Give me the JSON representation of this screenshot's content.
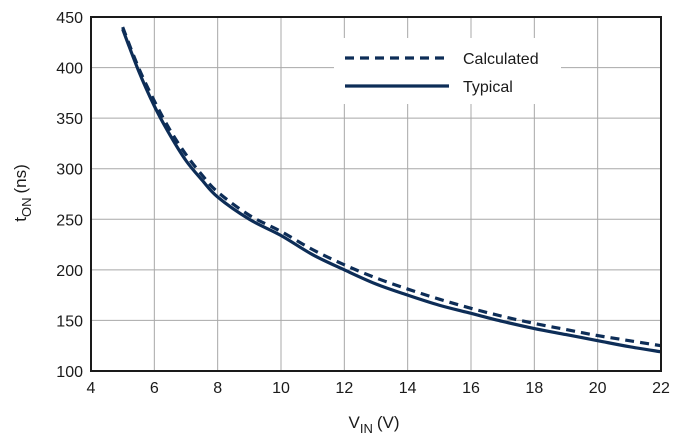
{
  "chart_data": {
    "type": "line",
    "x_axis": {
      "label_main": "V",
      "label_sub": "IN",
      "label_unit": "(V)",
      "range": [
        4,
        22
      ],
      "ticks": [
        4,
        6,
        8,
        10,
        12,
        14,
        16,
        18,
        20,
        22
      ],
      "tick_labels": [
        "4",
        "6",
        "8",
        "10",
        "12",
        "14",
        "16",
        "18",
        "20",
        "22"
      ],
      "grid": true
    },
    "y_axis": {
      "label_main": "t",
      "label_sub": "ON",
      "label_unit": "(ns)",
      "range": [
        100,
        450
      ],
      "ticks": [
        100,
        150,
        200,
        250,
        300,
        350,
        400,
        450
      ],
      "tick_labels": [
        "100",
        "150",
        "200",
        "250",
        "300",
        "350",
        "400",
        "450"
      ],
      "grid": true
    },
    "legend": {
      "position": "top-right"
    },
    "series": [
      {
        "name": "Calculated",
        "style": "dashed",
        "color": "#0d2d57",
        "x": [
          5,
          5.5,
          6,
          6.5,
          7,
          7.5,
          8,
          9,
          10,
          11,
          12,
          13,
          14,
          15,
          16,
          17,
          18,
          19,
          20,
          21,
          22
        ],
        "y": [
          440,
          400,
          367,
          338,
          314,
          294,
          277,
          254,
          238,
          220,
          205,
          192,
          181,
          171,
          162,
          154,
          147,
          141,
          135,
          130,
          125
        ]
      },
      {
        "name": "Typical",
        "style": "solid",
        "color": "#0d2d57",
        "x": [
          5,
          5.5,
          6,
          6.5,
          7,
          7.5,
          8,
          9,
          10,
          11,
          12,
          13,
          14,
          15,
          16,
          17,
          18,
          19,
          20,
          21,
          22
        ],
        "y": [
          438,
          397,
          362,
          333,
          308,
          289,
          272,
          250,
          234,
          215,
          200,
          186,
          175,
          165,
          157,
          149,
          142,
          136,
          130,
          124,
          119
        ]
      }
    ]
  }
}
